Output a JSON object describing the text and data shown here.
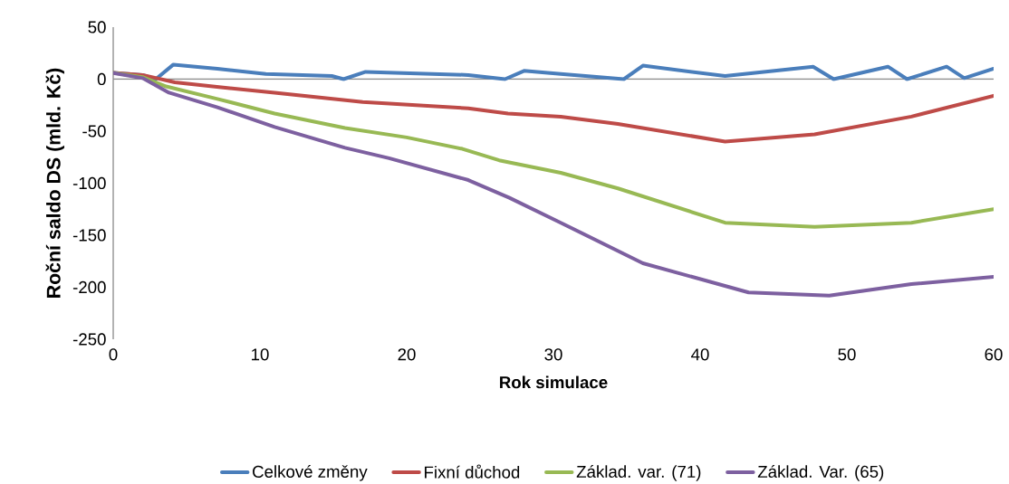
{
  "chart_data": {
    "type": "line",
    "xlabel": "Rok simulace",
    "ylabel": "Roční saldo DS (mld. Kč)",
    "xlim": [
      0,
      60
    ],
    "xticks": [
      0,
      10,
      20,
      30,
      40,
      50,
      60
    ],
    "ylim": [
      -250,
      50
    ],
    "yticks": [
      -250,
      -200,
      -150,
      -100,
      -50,
      0,
      50
    ],
    "legend": "bottom",
    "marker": "none",
    "line_style": "solid",
    "series": [
      {
        "name": "Celkové změny",
        "color": "#4a7ebb",
        "x": [
          0,
          2,
          2.9,
          4.1,
          7.1,
          10.4,
          14.9,
          15.7,
          17.2,
          24.2,
          26.7,
          28,
          30.5,
          34.8,
          36.1,
          41.7,
          47.7,
          49.1,
          52.8,
          54.1,
          56.8,
          58,
          60
        ],
        "values": [
          6,
          4,
          0,
          14,
          10,
          5,
          3,
          0,
          7,
          4,
          0,
          8,
          5,
          0,
          13,
          3,
          12,
          0,
          12,
          0,
          12,
          1,
          10
        ]
      },
      {
        "name": "Fixní důchod",
        "color": "#be4b48",
        "x": [
          0,
          2,
          4.2,
          7.5,
          11,
          17,
          24.2,
          26.9,
          30.5,
          34.4,
          41.7,
          47.8,
          54.4,
          60
        ],
        "values": [
          6,
          4,
          -3,
          -8,
          -13,
          -22,
          -28,
          -33,
          -36,
          -43,
          -60,
          -53,
          -36,
          -16
        ]
      },
      {
        "name": "Základ. var. (71)",
        "color": "#98b954",
        "x": [
          0,
          2,
          3.6,
          7.1,
          11,
          15.8,
          20,
          23.8,
          26.3,
          30.5,
          34.4,
          41.7,
          47.8,
          54.4,
          60
        ],
        "values": [
          6,
          2,
          -7,
          -19,
          -33,
          -47,
          -56,
          -67,
          -78,
          -90,
          -105,
          -138,
          -142,
          -138,
          -125
        ]
      },
      {
        "name": "Základ. Var. (65)",
        "color": "#7d60a0",
        "x": [
          0,
          2,
          3.8,
          7.1,
          11,
          15.8,
          18.8,
          24.2,
          27,
          30.5,
          36.1,
          43.3,
          48.8,
          54.4,
          60
        ],
        "values": [
          6,
          1,
          -13,
          -27,
          -46,
          -66,
          -76,
          -97,
          -114,
          -138,
          -177,
          -205,
          -208,
          -197,
          -190
        ]
      }
    ]
  }
}
